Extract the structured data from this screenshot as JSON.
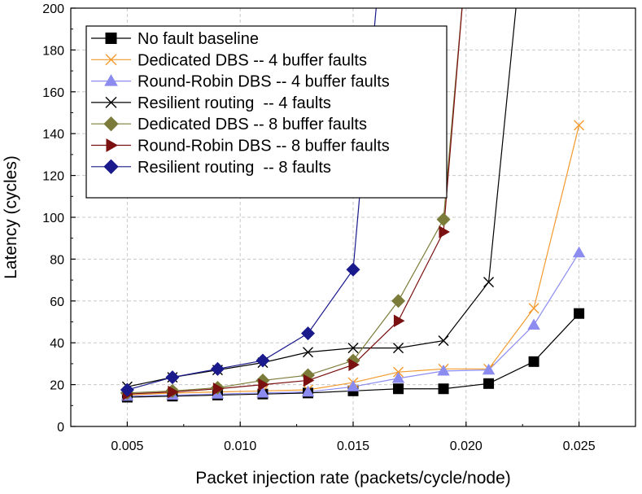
{
  "chart_data": {
    "type": "line",
    "xlabel": "Packet injection rate (packets/cycle/node)",
    "ylabel": "Latency (cycles)",
    "xlim": [
      0.0025,
      0.0275
    ],
    "ylim": [
      0,
      200
    ],
    "x_ticks": [
      0.005,
      0.01,
      0.015,
      0.02,
      0.025
    ],
    "x_tick_labels": [
      "0.005",
      "0.010",
      "0.015",
      "0.020",
      "0.025"
    ],
    "y_ticks": [
      0,
      20,
      40,
      60,
      80,
      100,
      120,
      140,
      160,
      180,
      200
    ],
    "y_tick_labels": [
      "0",
      "20",
      "40",
      "60",
      "80",
      "100",
      "120",
      "140",
      "160",
      "180",
      "200"
    ],
    "grid": true,
    "legend_position": "top-left",
    "series": [
      {
        "name": "No fault baseline",
        "color": "#000000",
        "marker": "square",
        "x": [
          0.005,
          0.007,
          0.009,
          0.011,
          0.013,
          0.015,
          0.017,
          0.019,
          0.021,
          0.023,
          0.025
        ],
        "y": [
          14,
          14.5,
          15,
          15.5,
          16,
          17,
          18,
          18,
          20.5,
          31,
          54
        ]
      },
      {
        "name": "Dedicated DBS -- 4 buffer faults",
        "color": "#f39a2e",
        "marker": "x",
        "x": [
          0.005,
          0.007,
          0.009,
          0.011,
          0.013,
          0.015,
          0.017,
          0.019,
          0.021,
          0.023,
          0.025
        ],
        "y": [
          15,
          16,
          16.5,
          17,
          17.5,
          21,
          26,
          27.5,
          27.5,
          56.5,
          144
        ]
      },
      {
        "name": "Round-Robin DBS -- 4 buffer faults",
        "color": "#8c8cf0",
        "marker": "triangle-up",
        "x": [
          0.005,
          0.007,
          0.009,
          0.011,
          0.013,
          0.015,
          0.017,
          0.019,
          0.021,
          0.023,
          0.025
        ],
        "y": [
          14.5,
          15,
          15.5,
          16,
          16.5,
          19,
          23,
          26.5,
          27,
          48.5,
          83
        ]
      },
      {
        "name": "Resilient routing  -- 4 faults",
        "color": "#000000",
        "marker": "x",
        "x": [
          0.005,
          0.007,
          0.009,
          0.011,
          0.013,
          0.015,
          0.017,
          0.019,
          0.021,
          0.0223
        ],
        "y": [
          19,
          23.5,
          27,
          30.5,
          35.5,
          37.5,
          37.5,
          41,
          69,
          210
        ]
      },
      {
        "name": "Dedicated DBS -- 8 buffer faults",
        "color": "#7b7b3a",
        "marker": "diamond",
        "x": [
          0.005,
          0.007,
          0.009,
          0.011,
          0.013,
          0.015,
          0.017,
          0.019,
          0.0199
        ],
        "y": [
          16,
          17,
          18.5,
          22,
          24.5,
          31.5,
          60,
          99,
          210
        ]
      },
      {
        "name": "Round-Robin DBS -- 8 buffer faults",
        "color": "#7a1010",
        "marker": "triangle-right",
        "x": [
          0.005,
          0.007,
          0.009,
          0.011,
          0.013,
          0.015,
          0.017,
          0.019,
          0.0199
        ],
        "y": [
          15.5,
          16.5,
          18,
          20,
          22,
          29.5,
          50.5,
          93,
          210
        ]
      },
      {
        "name": "Resilient routing  -- 8 faults",
        "color": "#1a1a8c",
        "marker": "diamond",
        "x": [
          0.005,
          0.007,
          0.009,
          0.011,
          0.013,
          0.015,
          0.0161
        ],
        "y": [
          17.5,
          23.5,
          27.5,
          31.5,
          44.5,
          75,
          210
        ]
      }
    ]
  }
}
